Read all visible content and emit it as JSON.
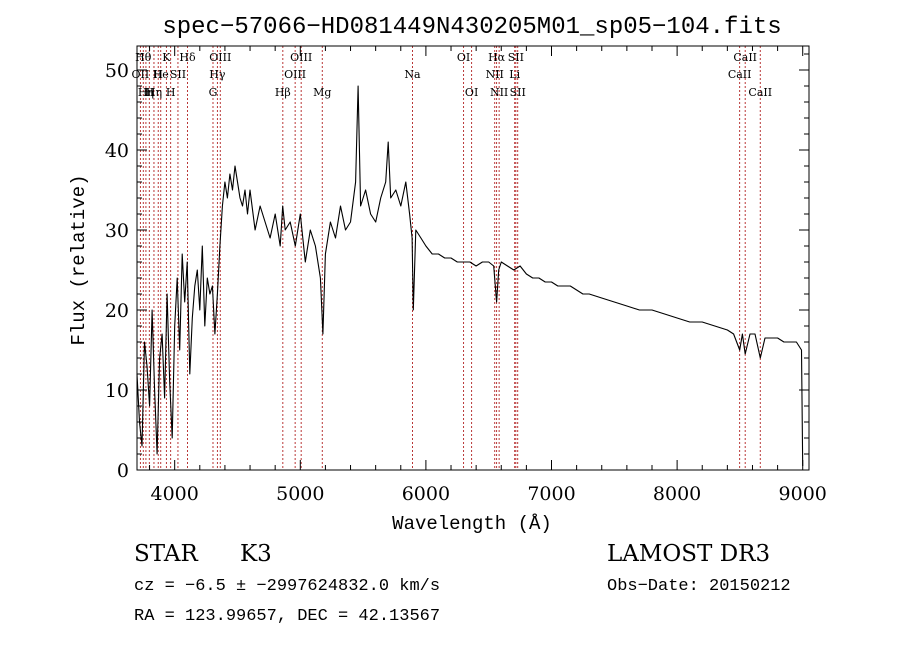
{
  "chart_data": {
    "type": "line",
    "title": "spec−57066−HD081449N430205M01_sp05−104.fits",
    "xlabel": "Wavelength (Å)",
    "ylabel": "Flux (relative)",
    "xlim": [
      3700,
      9050
    ],
    "ylim": [
      0,
      53
    ],
    "xticks": [
      4000,
      5000,
      6000,
      7000,
      8000,
      9000
    ],
    "yticks": [
      0,
      10,
      20,
      30,
      40,
      50
    ],
    "xtick_labels": [
      "4000",
      "5000",
      "6000",
      "7000",
      "8000",
      "9000"
    ],
    "ytick_labels": [
      "0",
      "10",
      "20",
      "30",
      "40",
      "50"
    ],
    "grid": false,
    "line_color": "#000000",
    "marker_color": "#b22222",
    "series": [
      {
        "name": "flux",
        "x": [
          3700,
          3720,
          3740,
          3760,
          3780,
          3800,
          3820,
          3840,
          3860,
          3880,
          3900,
          3920,
          3940,
          3960,
          3980,
          4000,
          4020,
          4040,
          4060,
          4080,
          4100,
          4120,
          4140,
          4160,
          4180,
          4200,
          4220,
          4240,
          4260,
          4280,
          4300,
          4320,
          4340,
          4360,
          4380,
          4400,
          4420,
          4440,
          4460,
          4480,
          4500,
          4520,
          4540,
          4560,
          4580,
          4600,
          4640,
          4680,
          4720,
          4760,
          4800,
          4840,
          4860,
          4880,
          4920,
          4960,
          5000,
          5040,
          5080,
          5120,
          5160,
          5180,
          5200,
          5240,
          5280,
          5320,
          5360,
          5400,
          5440,
          5460,
          5480,
          5520,
          5560,
          5600,
          5640,
          5680,
          5700,
          5720,
          5760,
          5800,
          5840,
          5870,
          5890,
          5900,
          5920,
          5960,
          6000,
          6050,
          6100,
          6150,
          6200,
          6250,
          6300,
          6350,
          6400,
          6450,
          6500,
          6540,
          6563,
          6580,
          6600,
          6650,
          6700,
          6750,
          6800,
          6850,
          6900,
          6950,
          7000,
          7050,
          7100,
          7150,
          7200,
          7250,
          7300,
          7400,
          7500,
          7600,
          7700,
          7800,
          7900,
          8000,
          8100,
          8200,
          8300,
          8400,
          8450,
          8498,
          8520,
          8542,
          8580,
          8620,
          8662,
          8700,
          8750,
          8800,
          8850,
          8900,
          8950,
          8990,
          9000
        ],
        "y": [
          12,
          6,
          3,
          16,
          13,
          8,
          20,
          10,
          2,
          14,
          17,
          9,
          22,
          11,
          4,
          18,
          24,
          15,
          27,
          21,
          26,
          12,
          19,
          23,
          25,
          20,
          28,
          18,
          24,
          22,
          23,
          17,
          22,
          28,
          33,
          36,
          34,
          37,
          35,
          38,
          36,
          34,
          33,
          35,
          32,
          35,
          30,
          33,
          31,
          29,
          32,
          28,
          33,
          30,
          31,
          28,
          32,
          26,
          30,
          28,
          24,
          17,
          27,
          31,
          29,
          33,
          30,
          31,
          36,
          48,
          33,
          35,
          32,
          31,
          34,
          36,
          41,
          34,
          35,
          33,
          36,
          32,
          29,
          20,
          30,
          29,
          28,
          27,
          27,
          26.5,
          26.5,
          26,
          26,
          26,
          25.5,
          26,
          26,
          25.5,
          21,
          25,
          26,
          25.5,
          25,
          25.5,
          24.5,
          24,
          24,
          23.5,
          23.5,
          23,
          23,
          23,
          22.5,
          22,
          22,
          21.5,
          21,
          20.5,
          20,
          20,
          19.5,
          19,
          18.5,
          18.5,
          18,
          17.5,
          17,
          15,
          17,
          14.5,
          17,
          17,
          14,
          16.5,
          16.5,
          16.5,
          16,
          16,
          16,
          15,
          0.5
        ]
      }
    ],
    "line_markers": [
      {
        "wavelength": 3727,
        "label": "OII",
        "row": 2
      },
      {
        "wavelength": 3750,
        "label": "Hθ",
        "row": 1
      },
      {
        "wavelength": 3771,
        "label": "Hη",
        "row": 3
      },
      {
        "wavelength": 3798,
        "label": "H",
        "row": 3
      },
      {
        "wavelength": 3835,
        "label": "Hη",
        "row": 3
      },
      {
        "wavelength": 3869,
        "label": "H",
        "row": 2
      },
      {
        "wavelength": 3889,
        "label": "He",
        "row": 2
      },
      {
        "wavelength": 3934,
        "label": "K",
        "row": 1
      },
      {
        "wavelength": 3968,
        "label": "H",
        "row": 3
      },
      {
        "wavelength": 4026,
        "label": "SII",
        "row": 2
      },
      {
        "wavelength": 4102,
        "label": "Hδ",
        "row": 1
      },
      {
        "wavelength": 4305,
        "label": "G",
        "row": 3
      },
      {
        "wavelength": 4340,
        "label": "Hγ",
        "row": 2
      },
      {
        "wavelength": 4363,
        "label": "OIII",
        "row": 1
      },
      {
        "wavelength": 4861,
        "label": "Hβ",
        "row": 3
      },
      {
        "wavelength": 4959,
        "label": "OIII",
        "row": 2
      },
      {
        "wavelength": 5007,
        "label": "OIII",
        "row": 1
      },
      {
        "wavelength": 5175,
        "label": "Mg",
        "row": 3
      },
      {
        "wavelength": 5893,
        "label": "Na",
        "row": 2
      },
      {
        "wavelength": 6300,
        "label": "OI",
        "row": 1
      },
      {
        "wavelength": 6364,
        "label": "OI",
        "row": 3
      },
      {
        "wavelength": 6548,
        "label": "NII",
        "row": 2
      },
      {
        "wavelength": 6563,
        "label": "Hα",
        "row": 1
      },
      {
        "wavelength": 6583,
        "label": "NII",
        "row": 3
      },
      {
        "wavelength": 6707,
        "label": "Li",
        "row": 2
      },
      {
        "wavelength": 6716,
        "label": "SII",
        "row": 1
      },
      {
        "wavelength": 6731,
        "label": "SII",
        "row": 3
      },
      {
        "wavelength": 8498,
        "label": "CaII",
        "row": 2
      },
      {
        "wavelength": 8542,
        "label": "CaII",
        "row": 1
      },
      {
        "wavelength": 8662,
        "label": "CaII",
        "row": 3
      }
    ]
  },
  "info": {
    "object_class": "STAR",
    "subclass": "K3",
    "survey": "LAMOST DR3",
    "redshift_line": "cz = −6.5 ± −2997624832.0 km/s",
    "obs_date_line": "Obs−Date: 20150212",
    "coords_line": "RA = 123.99657, DEC =  42.13567"
  }
}
